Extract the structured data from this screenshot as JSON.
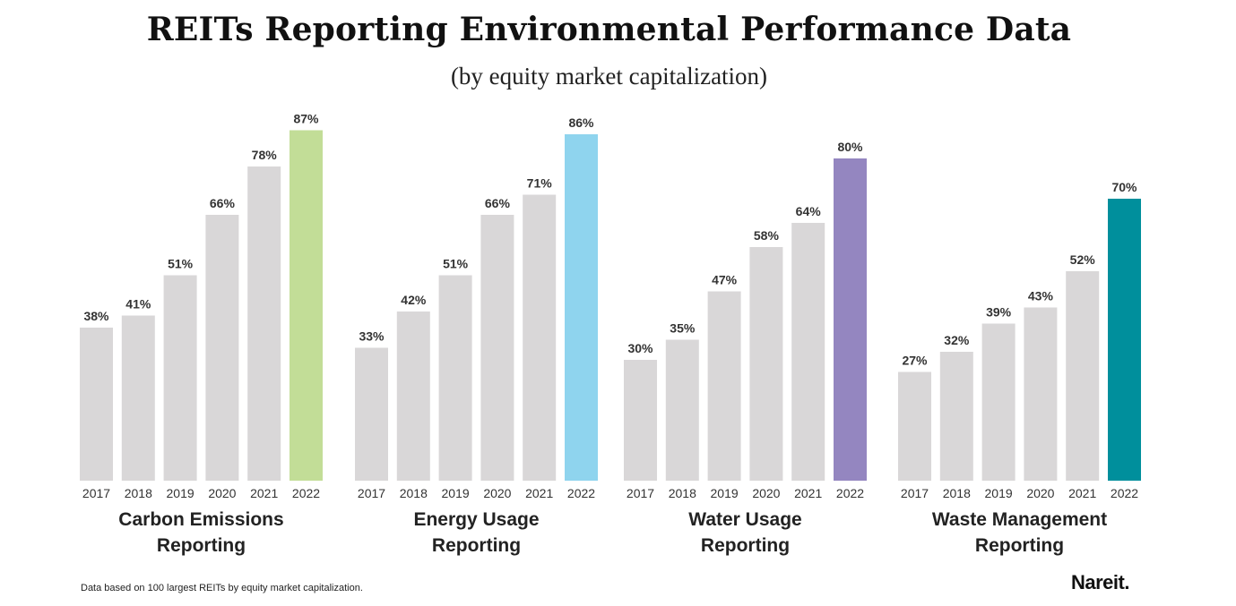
{
  "title": "REITs Reporting Environmental Performance Data",
  "subtitle": "(by equity market capitalization)",
  "footnote": "Data based on 100 largest REITs by equity market capitalization.",
  "logo": "Nareit.",
  "colors": {
    "base_bar": "#d9d7d8",
    "label_text": "#333333"
  },
  "chart_data": [
    {
      "type": "bar",
      "title": "Carbon Emissions Reporting",
      "title_lines": [
        "Carbon Emissions",
        "Reporting"
      ],
      "categories": [
        "2017",
        "2018",
        "2019",
        "2020",
        "2021",
        "2022"
      ],
      "values": [
        38,
        41,
        51,
        66,
        78,
        87
      ],
      "value_labels": [
        "38%",
        "41%",
        "51%",
        "66%",
        "78%",
        "87%"
      ],
      "highlight_color": "#c2dd97",
      "ylim": [
        0,
        100
      ]
    },
    {
      "type": "bar",
      "title": "Energy Usage Reporting",
      "title_lines": [
        "Energy Usage",
        "Reporting"
      ],
      "categories": [
        "2017",
        "2018",
        "2019",
        "2020",
        "2021",
        "2022"
      ],
      "values": [
        33,
        42,
        51,
        66,
        71,
        86
      ],
      "value_labels": [
        "33%",
        "42%",
        "51%",
        "66%",
        "71%",
        "86%"
      ],
      "highlight_color": "#8fd4ee",
      "ylim": [
        0,
        100
      ]
    },
    {
      "type": "bar",
      "title": "Water Usage Reporting",
      "title_lines": [
        "Water Usage",
        "Reporting"
      ],
      "categories": [
        "2017",
        "2018",
        "2019",
        "2020",
        "2021",
        "2022"
      ],
      "values": [
        30,
        35,
        47,
        58,
        64,
        80
      ],
      "value_labels": [
        "30%",
        "35%",
        "47%",
        "58%",
        "64%",
        "80%"
      ],
      "highlight_color": "#9486c0",
      "ylim": [
        0,
        100
      ]
    },
    {
      "type": "bar",
      "title": "Waste Management Reporting",
      "title_lines": [
        "Waste Management",
        "Reporting"
      ],
      "categories": [
        "2017",
        "2018",
        "2019",
        "2020",
        "2021",
        "2022"
      ],
      "values": [
        27,
        32,
        39,
        43,
        52,
        70
      ],
      "value_labels": [
        "27%",
        "32%",
        "39%",
        "43%",
        "52%",
        "70%"
      ],
      "highlight_color": "#008f9c",
      "ylim": [
        0,
        100
      ]
    }
  ]
}
